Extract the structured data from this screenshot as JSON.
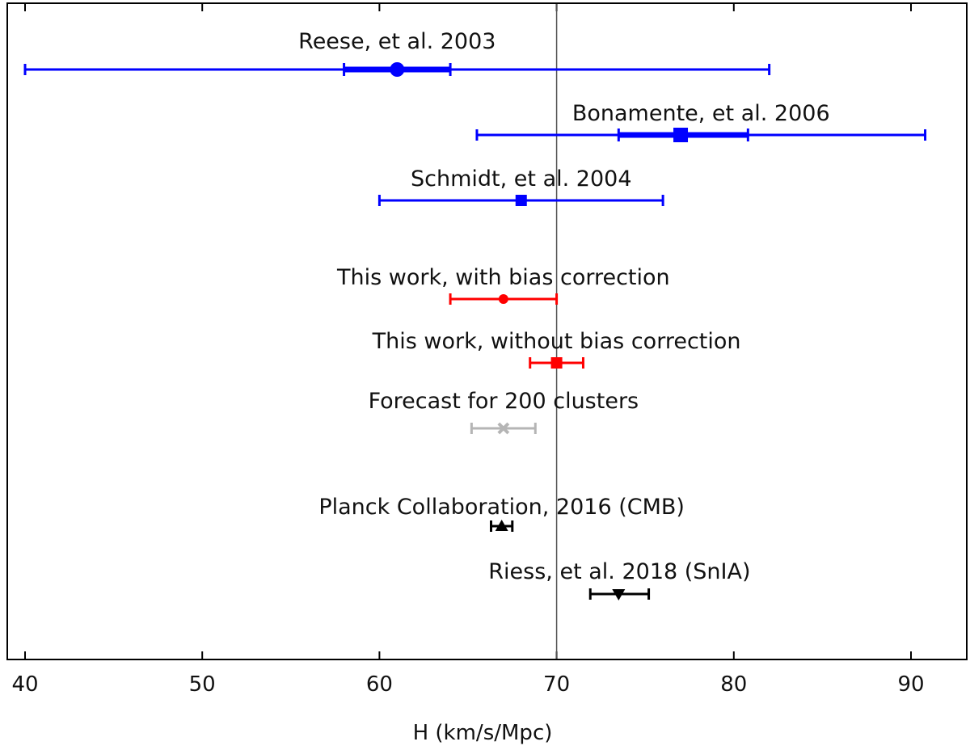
{
  "chart_data": {
    "type": "errorbar",
    "xlabel": "H (km/s/Mpc)",
    "xlim": [
      39,
      92.5
    ],
    "xticks": [
      40,
      50,
      60,
      70,
      80,
      90
    ],
    "reference_line": 70,
    "grid": false,
    "estimates": [
      {
        "label": "Reese, et al. 2003",
        "value": 61,
        "err_inner": [
          58,
          64
        ],
        "err_outer": [
          40,
          82
        ],
        "marker": "circle",
        "color": "#0000ff"
      },
      {
        "label": "Bonamente, et al. 2006",
        "value": 77,
        "err_inner": [
          73.5,
          80.8
        ],
        "err_outer": [
          65.5,
          90.8
        ],
        "marker": "square",
        "color": "#0000ff"
      },
      {
        "label": "Schmidt, et al. 2004",
        "value": 68,
        "err_inner": null,
        "err_outer": [
          60,
          76
        ],
        "marker": "square",
        "color": "#0000ff"
      },
      {
        "label": "This work, with bias correction",
        "value": 67,
        "err_inner": null,
        "err_outer": [
          64,
          70
        ],
        "marker": "circle",
        "color": "#ff0000"
      },
      {
        "label": "This work, without bias correction",
        "value": 70,
        "err_inner": null,
        "err_outer": [
          68.5,
          71.5
        ],
        "marker": "square",
        "color": "#ff0000"
      },
      {
        "label": "Forecast for 200 clusters",
        "value": 67,
        "err_inner": null,
        "err_outer": [
          65.2,
          68.8
        ],
        "marker": "x",
        "color": "#b5b5b5"
      },
      {
        "label": "Planck Collaboration, 2016 (CMB)",
        "value": 66.9,
        "err_inner": null,
        "err_outer": [
          66.3,
          67.5
        ],
        "marker": "triangle-up",
        "color": "#000000"
      },
      {
        "label": "Riess, et al. 2018 (SnIA)",
        "value": 73.5,
        "err_inner": null,
        "err_outer": [
          71.9,
          75.2
        ],
        "marker": "triangle-down",
        "color": "#000000"
      }
    ]
  }
}
